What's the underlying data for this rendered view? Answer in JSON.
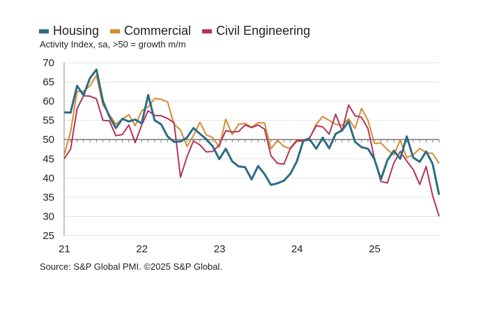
{
  "chart_data": {
    "type": "line",
    "subtitle": "Activity Index, sa, >50 = growth m/m",
    "source": "Source: S&P Global PMI. ©2025 S&P Global.",
    "x_start": "2021-01",
    "x_end": "2025-11",
    "x_frequency": "monthly",
    "x_tick_labels": [
      "21",
      "22",
      "23",
      "24",
      "25"
    ],
    "ylim": [
      25,
      70
    ],
    "y_ticks": [
      25,
      30,
      35,
      40,
      45,
      50,
      55,
      60,
      65,
      70
    ],
    "reference_line": 50,
    "grid": true,
    "legend_position": "top-left",
    "series": [
      {
        "name": "Housing",
        "color": "#2b6d85",
        "values": [
          57.1,
          57,
          64,
          61.5,
          66,
          68.2,
          60,
          56,
          53,
          55.4,
          54.7,
          55.2,
          54.2,
          61.6,
          55,
          54,
          50.8,
          49.4,
          49.5,
          50.5,
          53,
          51.5,
          50.1,
          48.2,
          44.9,
          47.6,
          44.3,
          43,
          42.8,
          39.6,
          43.1,
          41,
          38.2,
          38.6,
          39.3,
          41.1,
          44.3,
          49.7,
          50,
          47.6,
          50.5,
          47.7,
          51.5,
          52.4,
          54.7,
          49.4,
          48,
          47.6,
          44.9,
          39.6,
          44.6,
          47.1,
          45,
          50.8,
          45.3,
          44.2,
          46.9,
          43.7,
          35.6
        ]
      },
      {
        "name": "Commercial",
        "color": "#d68a2e",
        "values": [
          46,
          52,
          62.5,
          62.5,
          64,
          66.7,
          59,
          56.5,
          54,
          55.3,
          56.5,
          53.6,
          57.5,
          58.5,
          60.7,
          60.5,
          59.8,
          54,
          52.5,
          48.2,
          51,
          54.5,
          51.2,
          50.5,
          48,
          55.3,
          51.3,
          54,
          54.2,
          53.2,
          54.4,
          54.3,
          47.6,
          49.8,
          48.2,
          47.6,
          49.5,
          49.5,
          50.5,
          54,
          56,
          55,
          54,
          53.7,
          55.4,
          52.9,
          58.1,
          55,
          49,
          49.1,
          47.4,
          46,
          49.9,
          45.3,
          46,
          47.7,
          46.6,
          46.4,
          43.8
        ]
      },
      {
        "name": "Civil Engineering",
        "color": "#b3325c",
        "values": [
          45,
          47.5,
          58,
          61.4,
          61.3,
          60.6,
          55,
          54.9,
          51,
          51.3,
          53.8,
          49.2,
          53.8,
          57.5,
          56.3,
          56.2,
          55.5,
          54.4,
          40.2,
          45.5,
          49.6,
          48.6,
          46.8,
          46.9,
          48.6,
          52.3,
          52,
          52.1,
          53.8,
          53.1,
          53.8,
          52.7,
          45.8,
          43.8,
          43.6,
          47.8,
          49.8,
          49.8,
          50.5,
          53.6,
          53.3,
          51.4,
          56.6,
          52.2,
          59,
          56.2,
          55.8,
          52.8,
          45.1,
          39.1,
          38.7,
          43.9,
          46.9,
          44.4,
          42.2,
          38.3,
          43,
          35.4,
          30
        ]
      }
    ]
  }
}
